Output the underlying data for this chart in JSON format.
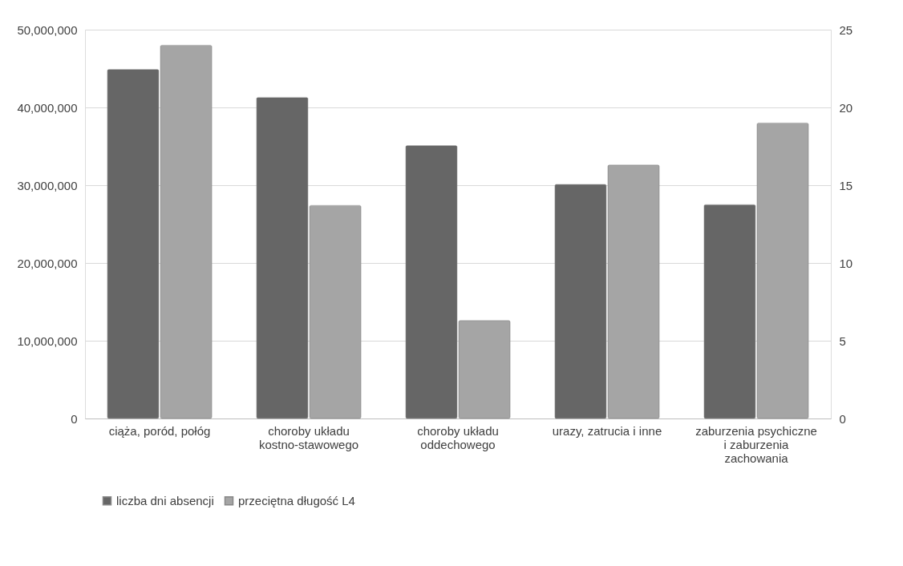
{
  "chart_data": {
    "type": "bar",
    "categories": [
      "ciąża, poród, połóg",
      "choroby układu kostno-stawowego",
      "choroby układu oddechowego",
      "urazy, zatrucia i inne",
      "zaburzenia psychiczne i zaburzenia zachowania"
    ],
    "series": [
      {
        "name": "liczba dni absencji",
        "color": "#666666",
        "values": [
          44900000,
          41300000,
          35100000,
          30100000,
          27500000
        ]
      },
      {
        "name": "przeciętna długość L4",
        "color": "#a5a5a5",
        "axis": "y2",
        "values": [
          24.0,
          13.7,
          6.3,
          16.3,
          19.0
        ]
      }
    ],
    "ylim": [
      0,
      50000000
    ],
    "yticks": [
      0,
      {
        "value": 10000000,
        "label": "10,000,000"
      },
      {
        "value": 20000000,
        "label": "20,000,000"
      },
      {
        "value": 30000000,
        "label": "30,000,000"
      },
      {
        "value": 40000000,
        "label": "40,000,000"
      },
      {
        "value": 50000000,
        "label": "50,000,000"
      }
    ],
    "y2lim": [
      0,
      25
    ],
    "y2ticks": [
      0,
      5,
      10,
      15,
      20,
      25
    ],
    "grid": "y",
    "legend": "bottom"
  }
}
